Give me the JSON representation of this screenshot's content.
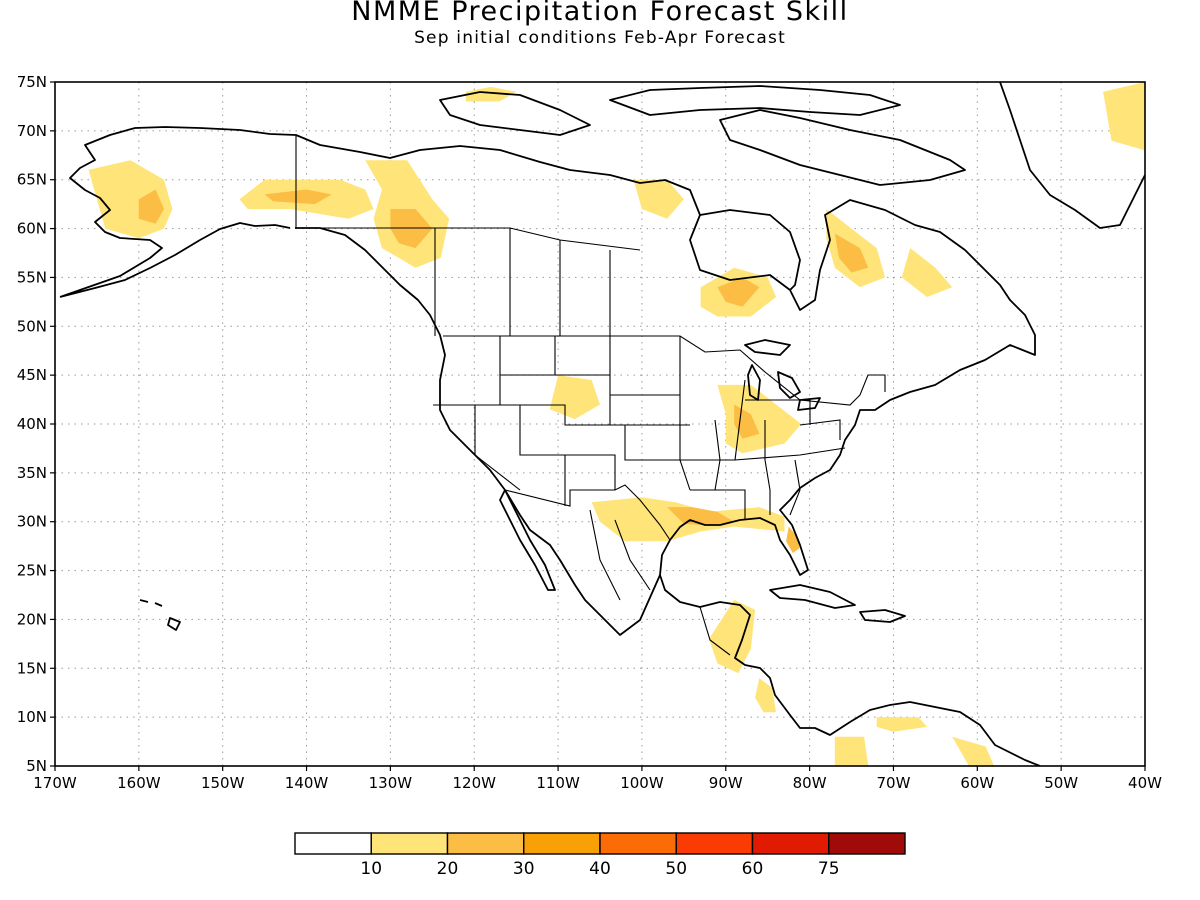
{
  "title": "NMME Precipitation Forecast Skill",
  "subtitle": "Sep initial conditions  Feb-Apr Forecast",
  "map": {
    "lon_range": [
      -170,
      -40
    ],
    "lat_range": [
      5,
      75
    ],
    "grid": true,
    "lat_labels": [
      "5N",
      "10N",
      "15N",
      "20N",
      "25N",
      "30N",
      "35N",
      "40N",
      "45N",
      "50N",
      "55N",
      "60N",
      "65N",
      "70N",
      "75N"
    ],
    "lon_labels": [
      "170W",
      "160W",
      "150W",
      "140W",
      "130W",
      "120W",
      "110W",
      "100W",
      "90W",
      "80W",
      "70W",
      "60W",
      "50W",
      "40W"
    ]
  },
  "colorbar": {
    "colors": [
      "#ffffff",
      "#ffe47a",
      "#fbbd43",
      "#f9a007",
      "#fb6c06",
      "#fb3b04",
      "#e01b02",
      "#a00a08"
    ],
    "labels": [
      "10",
      "20",
      "30",
      "40",
      "50",
      "60",
      "75"
    ]
  },
  "skill_regions": [
    {
      "name": "alaska-west",
      "level": 1,
      "pts": [
        [
          -166,
          66
        ],
        [
          -161,
          67
        ],
        [
          -157,
          65
        ],
        [
          -156,
          62
        ],
        [
          -157,
          60
        ],
        [
          -160,
          59
        ],
        [
          -164,
          60
        ],
        [
          -165,
          63
        ]
      ]
    },
    {
      "name": "alaska-west-core",
      "level": 2,
      "pts": [
        [
          -160,
          63
        ],
        [
          -158,
          64
        ],
        [
          -157,
          62
        ],
        [
          -158,
          60.5
        ],
        [
          -160,
          61
        ]
      ]
    },
    {
      "name": "alaska-east",
      "level": 1,
      "pts": [
        [
          -148,
          63
        ],
        [
          -145,
          65
        ],
        [
          -140,
          65
        ],
        [
          -136,
          65
        ],
        [
          -133,
          64
        ],
        [
          -132,
          62
        ],
        [
          -135,
          61
        ],
        [
          -142,
          62
        ],
        [
          -147,
          62
        ]
      ]
    },
    {
      "name": "alaska-east-core",
      "level": 2,
      "pts": [
        [
          -145,
          63.5
        ],
        [
          -140,
          64
        ],
        [
          -137,
          63.5
        ],
        [
          -139,
          62.5
        ],
        [
          -144,
          62.8
        ]
      ]
    },
    {
      "name": "yukon-bc",
      "level": 1,
      "pts": [
        [
          -133,
          67
        ],
        [
          -128,
          67
        ],
        [
          -125,
          63
        ],
        [
          -123,
          61
        ],
        [
          -124,
          57
        ],
        [
          -127,
          56
        ],
        [
          -131,
          58
        ],
        [
          -132,
          61
        ],
        [
          -131,
          64
        ]
      ]
    },
    {
      "name": "yukon-bc-core",
      "level": 2,
      "pts": [
        [
          -130,
          62
        ],
        [
          -127,
          62
        ],
        [
          -125,
          60
        ],
        [
          -127,
          58
        ],
        [
          -129,
          58.5
        ],
        [
          -130,
          60
        ]
      ]
    },
    {
      "name": "banks",
      "level": 1,
      "pts": [
        [
          -121,
          74
        ],
        [
          -118,
          74.5
        ],
        [
          -115,
          74
        ],
        [
          -117,
          73
        ],
        [
          -121,
          73
        ]
      ]
    },
    {
      "name": "nunavut-west",
      "level": 1,
      "pts": [
        [
          -101,
          65
        ],
        [
          -97,
          65
        ],
        [
          -95,
          63
        ],
        [
          -97,
          61
        ],
        [
          -100,
          62
        ]
      ]
    },
    {
      "name": "ontario",
      "level": 1,
      "pts": [
        [
          -93,
          54
        ],
        [
          -89,
          56
        ],
        [
          -85,
          55
        ],
        [
          -84,
          53
        ],
        [
          -87,
          51
        ],
        [
          -91,
          51
        ],
        [
          -93,
          52
        ]
      ]
    },
    {
      "name": "ontario-core",
      "level": 2,
      "pts": [
        [
          -91,
          54
        ],
        [
          -88,
          55
        ],
        [
          -86,
          54
        ],
        [
          -88,
          52
        ],
        [
          -90,
          52.5
        ]
      ]
    },
    {
      "name": "quebec",
      "level": 1,
      "pts": [
        [
          -78,
          62
        ],
        [
          -75,
          60
        ],
        [
          -72,
          58
        ],
        [
          -71,
          55
        ],
        [
          -74,
          54
        ],
        [
          -77,
          56
        ],
        [
          -78,
          59
        ]
      ]
    },
    {
      "name": "quebec-core",
      "level": 2,
      "pts": [
        [
          -77,
          59.5
        ],
        [
          -74,
          58
        ],
        [
          -73,
          56
        ],
        [
          -75,
          55.5
        ],
        [
          -76.5,
          57
        ]
      ]
    },
    {
      "name": "labrador",
      "level": 1,
      "pts": [
        [
          -68,
          58
        ],
        [
          -65,
          56
        ],
        [
          -63,
          54
        ],
        [
          -66,
          53
        ],
        [
          -69,
          55
        ]
      ]
    },
    {
      "name": "greenland",
      "level": 1,
      "pts": [
        [
          -44,
          69
        ],
        [
          -40,
          68
        ],
        [
          -35,
          71
        ],
        [
          -40,
          75
        ],
        [
          -45,
          74
        ]
      ]
    },
    {
      "name": "wyoming",
      "level": 1,
      "pts": [
        [
          -110,
          45
        ],
        [
          -106,
          44.5
        ],
        [
          -105,
          42
        ],
        [
          -108,
          40.5
        ],
        [
          -111,
          41.5
        ]
      ]
    },
    {
      "name": "midwest",
      "level": 1,
      "pts": [
        [
          -91,
          44
        ],
        [
          -87,
          44
        ],
        [
          -84,
          42
        ],
        [
          -81,
          40
        ],
        [
          -83,
          38
        ],
        [
          -88,
          37
        ],
        [
          -90,
          38
        ],
        [
          -90,
          41
        ]
      ]
    },
    {
      "name": "midwest-core",
      "level": 2,
      "pts": [
        [
          -89,
          42
        ],
        [
          -87,
          41
        ],
        [
          -86,
          39
        ],
        [
          -88,
          38.5
        ],
        [
          -89,
          40
        ]
      ]
    },
    {
      "name": "texas-gulf",
      "level": 1,
      "pts": [
        [
          -106,
          32
        ],
        [
          -100,
          32.5
        ],
        [
          -96,
          32
        ],
        [
          -92,
          31
        ],
        [
          -86,
          31.5
        ],
        [
          -83,
          30.5
        ],
        [
          -83,
          29
        ],
        [
          -89,
          29.5
        ],
        [
          -93,
          29
        ],
        [
          -97,
          28
        ],
        [
          -102,
          28
        ],
        [
          -105,
          30
        ]
      ]
    },
    {
      "name": "texas-gulf-core",
      "level": 2,
      "pts": [
        [
          -97,
          31.5
        ],
        [
          -94,
          31.5
        ],
        [
          -91,
          31
        ],
        [
          -89,
          30
        ],
        [
          -92,
          29.6
        ],
        [
          -95,
          29.8
        ]
      ]
    },
    {
      "name": "florida",
      "level": 2,
      "pts": [
        [
          -82.5,
          29.5
        ],
        [
          -81.5,
          28.5
        ],
        [
          -81.2,
          27.3
        ],
        [
          -82,
          26.8
        ],
        [
          -82.8,
          28
        ]
      ]
    },
    {
      "name": "yucatan",
      "level": 1,
      "pts": [
        [
          -92,
          18
        ],
        [
          -89,
          22
        ],
        [
          -86.5,
          21
        ],
        [
          -87,
          17
        ],
        [
          -88.5,
          14.5
        ],
        [
          -91,
          15.5
        ]
      ]
    },
    {
      "name": "central-america",
      "level": 1,
      "pts": [
        [
          -86,
          14
        ],
        [
          -84.5,
          13
        ],
        [
          -84,
          10.5
        ],
        [
          -85.5,
          10.5
        ],
        [
          -86.5,
          12
        ]
      ]
    },
    {
      "name": "colombia",
      "level": 1,
      "pts": [
        [
          -77,
          8
        ],
        [
          -73.5,
          8
        ],
        [
          -73,
          5
        ],
        [
          -77,
          5
        ]
      ]
    },
    {
      "name": "venezuela",
      "level": 1,
      "pts": [
        [
          -72,
          10
        ],
        [
          -67,
          10
        ],
        [
          -66,
          9
        ],
        [
          -70,
          8.5
        ],
        [
          -72,
          9
        ]
      ]
    },
    {
      "name": "guiana",
      "level": 1,
      "pts": [
        [
          -63,
          8
        ],
        [
          -59,
          7
        ],
        [
          -58,
          5
        ],
        [
          -61,
          5
        ]
      ]
    }
  ]
}
